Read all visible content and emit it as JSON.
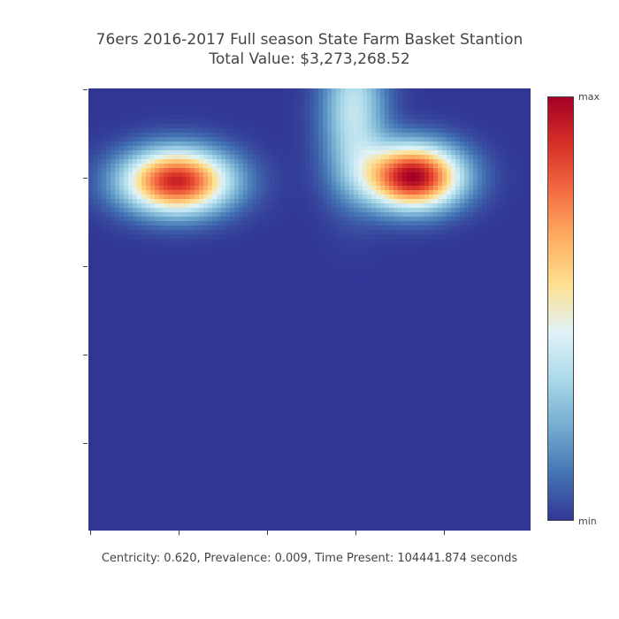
{
  "chart_data": {
    "type": "heatmap",
    "title": "76ers 2016-2017 Full season State Farm Basket Stantion",
    "subtitle": "Total Value: $3,273,268.52",
    "footer": "Centricity: 0.620, Prevalence: 0.009, Time Present: 104441.874 seconds",
    "colorbar": {
      "max_label": "max",
      "min_label": "min",
      "colorscale": [
        "#313695",
        "#4575b4",
        "#74add1",
        "#abd9e9",
        "#e0f3f8",
        "#fee090",
        "#fdae61",
        "#f46d43",
        "#d73027",
        "#a50026"
      ]
    },
    "xlim": [
      0,
      1
    ],
    "ylim": [
      0,
      1
    ],
    "xticks": [
      0,
      0.2,
      0.4,
      0.6,
      0.8
    ],
    "yticks": [
      0.2,
      0.4,
      0.6,
      0.8,
      1.0
    ],
    "tick_labels_shown": false,
    "hotspots": [
      {
        "x": 0.2,
        "y": 0.79,
        "intensity": 0.92,
        "sx": 0.085,
        "sy": 0.05
      },
      {
        "x": 0.735,
        "y": 0.8,
        "intensity": 1.0,
        "sx": 0.075,
        "sy": 0.05
      },
      {
        "x": 0.6,
        "y": 0.95,
        "intensity": 0.38,
        "sx": 0.05,
        "sy": 0.12
      }
    ],
    "baseline": 0.0
  }
}
